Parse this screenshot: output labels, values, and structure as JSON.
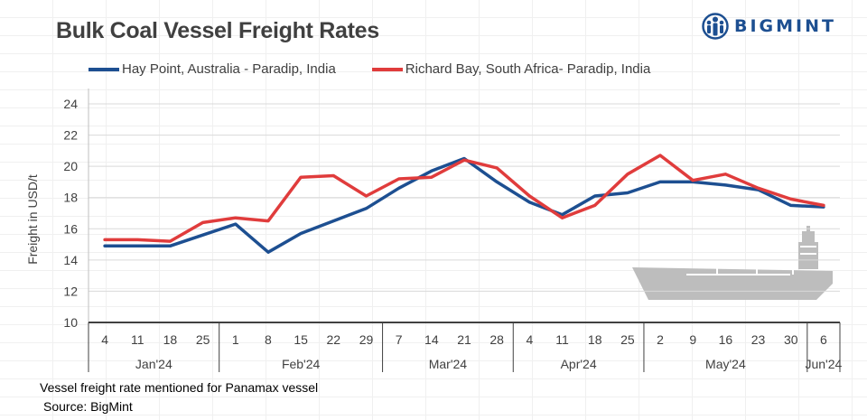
{
  "title": "Bulk Coal Vessel Freight Rates",
  "logo": {
    "text": "BIGMINT",
    "icon": "people-globe-icon",
    "color": "#1d4f91"
  },
  "footnote": "Vessel freight rate mentioned for Panamax  vessel",
  "source": " Source: BigMint",
  "chart_data": {
    "type": "line",
    "title": "Bulk Coal Vessel Freight Rates",
    "ylabel": "Freight  in USD/t",
    "xlabel": "",
    "ylim": [
      10,
      24
    ],
    "yticks": [
      10,
      12,
      14,
      16,
      18,
      20,
      22,
      24
    ],
    "grid": true,
    "legend_position": "top",
    "categories": [
      "4",
      "11",
      "18",
      "25",
      "1",
      "8",
      "15",
      "22",
      "29",
      "7",
      "14",
      "21",
      "28",
      "4",
      "11",
      "18",
      "25",
      "2",
      "9",
      "16",
      "23",
      "30",
      "6"
    ],
    "month_groups": [
      {
        "label": "Jan'24",
        "count": 4
      },
      {
        "label": "Feb'24",
        "count": 5
      },
      {
        "label": "Mar'24",
        "count": 4
      },
      {
        "label": "Apr'24",
        "count": 4
      },
      {
        "label": "May'24",
        "count": 5
      },
      {
        "label": "Jun'24",
        "count": 1
      }
    ],
    "series": [
      {
        "name": "Hay Point, Australia - Paradip, India",
        "color": "#1d4f91",
        "values": [
          14.9,
          14.9,
          14.9,
          15.6,
          16.3,
          14.5,
          15.7,
          16.5,
          17.3,
          18.6,
          19.7,
          20.5,
          19.0,
          17.7,
          16.9,
          18.1,
          18.3,
          19.0,
          19.0,
          18.8,
          18.5,
          17.5,
          17.4
        ]
      },
      {
        "name": "Richard Bay, South Africa- Paradip, India",
        "color": "#e03c3c",
        "values": [
          15.3,
          15.3,
          15.2,
          16.4,
          16.7,
          16.5,
          19.3,
          19.4,
          18.1,
          19.2,
          19.3,
          20.4,
          19.9,
          18.1,
          16.7,
          17.5,
          19.5,
          20.7,
          19.1,
          19.5,
          18.6,
          17.9,
          17.5
        ]
      }
    ],
    "decoration": "ship-icon"
  }
}
